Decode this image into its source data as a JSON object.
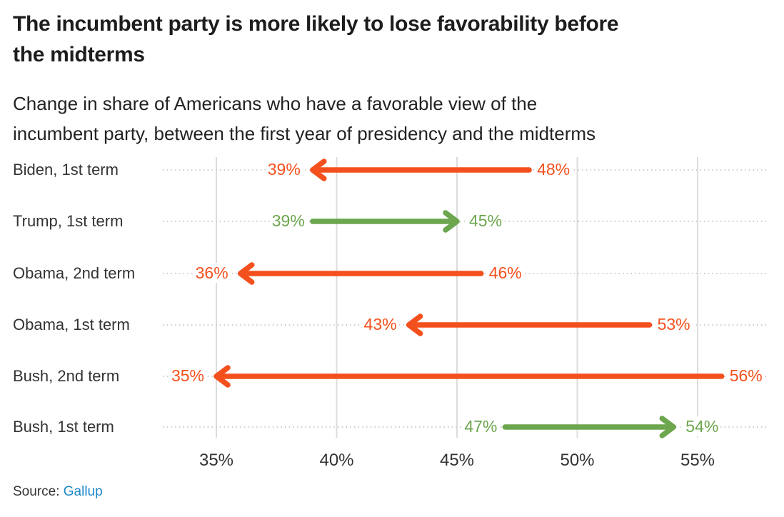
{
  "header": {
    "title_lines": [
      "The incumbent party is more likely to lose favorability before",
      "the midterms"
    ],
    "subtitle_lines": [
      "Change in share of Americans who have a favorable view of the",
      "incumbent party, between the first year of presidency and the midterms"
    ]
  },
  "chart_data": {
    "type": "arrow",
    "title": "The incumbent party is more likely to lose favorability before the midterms",
    "subtitle": "Change in share of Americans who have a favorable view of the incumbent party, between the first year of presidency and the midterms",
    "unit": "%",
    "x_axis": {
      "min": 32.7,
      "max": 57.9,
      "ticks": [
        35,
        40,
        45,
        50,
        55
      ],
      "tick_labels": [
        "35%",
        "40%",
        "45%",
        "50%",
        "55%"
      ],
      "gridlines": true
    },
    "colors": {
      "decrease": "#f4501e",
      "increase": "#6ca64e"
    },
    "series": [
      {
        "label": "Biden, 1st term",
        "start": 48,
        "end": 39,
        "start_label": "48%",
        "end_label": "39%",
        "trend": "decrease"
      },
      {
        "label": "Trump, 1st term",
        "start": 39,
        "end": 45,
        "start_label": "39%",
        "end_label": "45%",
        "trend": "increase"
      },
      {
        "label": "Obama, 2nd term",
        "start": 46,
        "end": 36,
        "start_label": "46%",
        "end_label": "36%",
        "trend": "decrease"
      },
      {
        "label": "Obama, 1st term",
        "start": 53,
        "end": 43,
        "start_label": "53%",
        "end_label": "43%",
        "trend": "decrease"
      },
      {
        "label": "Bush, 2nd term",
        "start": 56,
        "end": 35,
        "start_label": "56%",
        "end_label": "35%",
        "trend": "decrease"
      },
      {
        "label": "Bush, 1st term",
        "start": 47,
        "end": 54,
        "start_label": "47%",
        "end_label": "54%",
        "trend": "increase"
      }
    ],
    "grid_color": "#dcdcdc",
    "dotted_leader_color": "#cdcdcd",
    "legend": null
  },
  "source": {
    "prefix": "Source: ",
    "link_label": "Gallup",
    "link_color": "#1e87c7"
  }
}
